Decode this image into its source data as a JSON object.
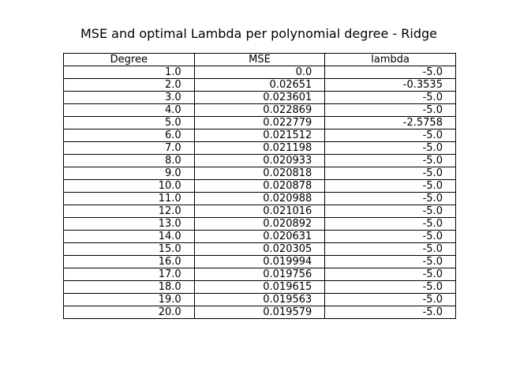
{
  "chart_data": {
    "type": "table",
    "title": "MSE and optimal Lambda per polynomial degree - Ridge",
    "columns": [
      "Degree",
      "MSE",
      "lambda"
    ],
    "rows": [
      [
        "1.0",
        "0.0",
        "-5.0"
      ],
      [
        "2.0",
        "0.02651",
        "-0.3535"
      ],
      [
        "3.0",
        "0.023601",
        "-5.0"
      ],
      [
        "4.0",
        "0.022869",
        "-5.0"
      ],
      [
        "5.0",
        "0.022779",
        "-2.5758"
      ],
      [
        "6.0",
        "0.021512",
        "-5.0"
      ],
      [
        "7.0",
        "0.021198",
        "-5.0"
      ],
      [
        "8.0",
        "0.020933",
        "-5.0"
      ],
      [
        "9.0",
        "0.020818",
        "-5.0"
      ],
      [
        "10.0",
        "0.020878",
        "-5.0"
      ],
      [
        "11.0",
        "0.020988",
        "-5.0"
      ],
      [
        "12.0",
        "0.021016",
        "-5.0"
      ],
      [
        "13.0",
        "0.020892",
        "-5.0"
      ],
      [
        "14.0",
        "0.020631",
        "-5.0"
      ],
      [
        "15.0",
        "0.020305",
        "-5.0"
      ],
      [
        "16.0",
        "0.019994",
        "-5.0"
      ],
      [
        "17.0",
        "0.019756",
        "-5.0"
      ],
      [
        "18.0",
        "0.019615",
        "-5.0"
      ],
      [
        "19.0",
        "0.019563",
        "-5.0"
      ],
      [
        "20.0",
        "0.019579",
        "-5.0"
      ]
    ]
  }
}
